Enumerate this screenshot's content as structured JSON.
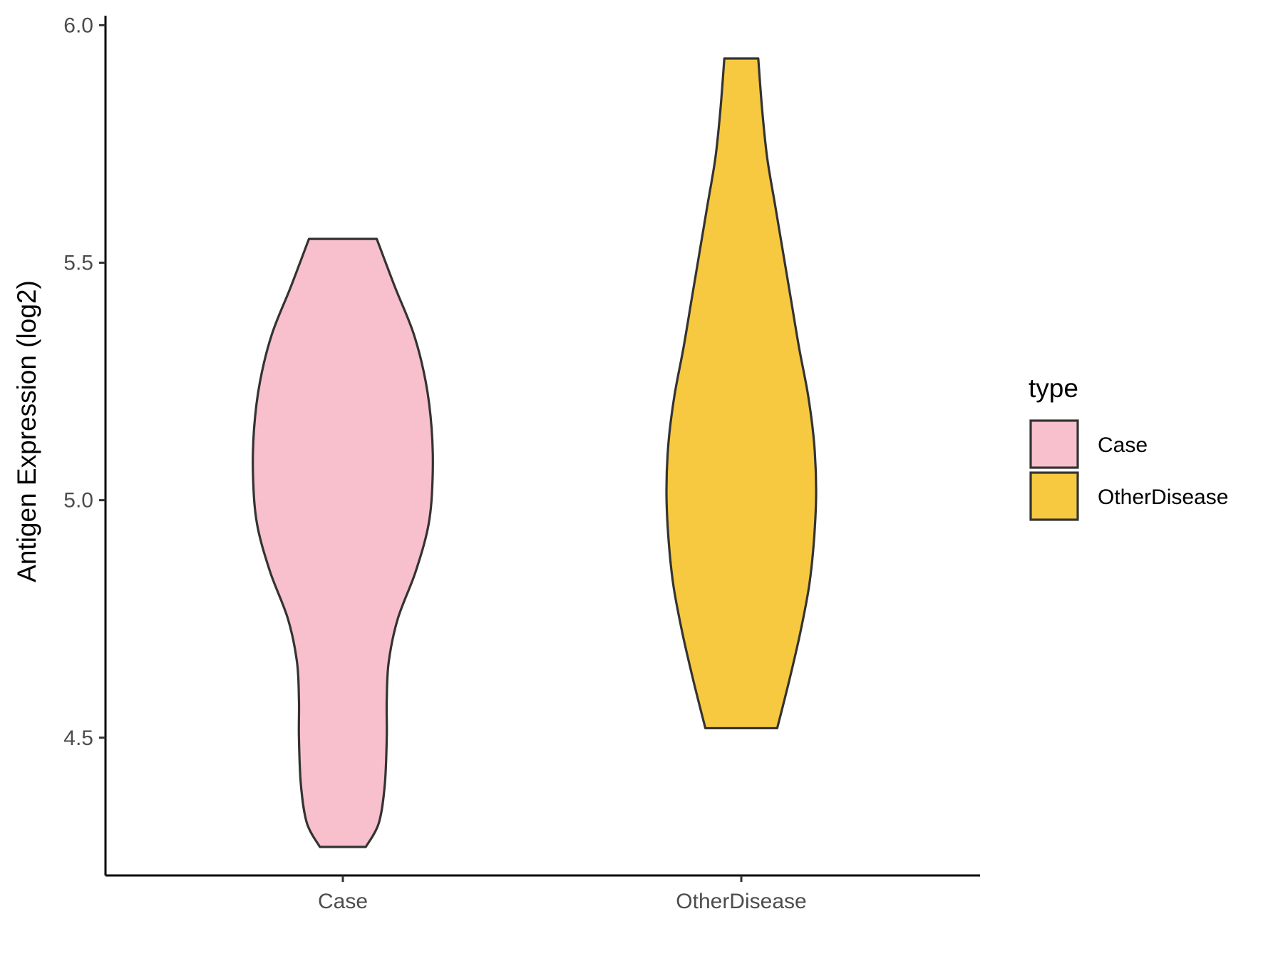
{
  "chart_data": {
    "type": "violin",
    "ylabel": "Antigen Expression (log2)",
    "xlabel": "",
    "categories": [
      "Case",
      "OtherDisease"
    ],
    "ylim": [
      4.21,
      6.02
    ],
    "yticks": [
      4.5,
      5.0,
      5.5,
      6.0
    ],
    "ytick_labels": [
      "4.5",
      "5.0",
      "5.5",
      "6.0"
    ],
    "grid": false,
    "legend": {
      "title": "type",
      "placement": "right",
      "entries": [
        {
          "label": "Case",
          "color": "#F7C0CC"
        },
        {
          "label": "OtherDisease",
          "color": "#F6C940"
        }
      ]
    },
    "series": [
      {
        "category": "Case",
        "fill": "#F7C0CC",
        "y_range": [
          4.27,
          5.55
        ],
        "profile": [
          [
            4.27,
            0.23
          ],
          [
            4.32,
            0.36
          ],
          [
            4.4,
            0.42
          ],
          [
            4.5,
            0.44
          ],
          [
            4.58,
            0.44
          ],
          [
            4.66,
            0.46
          ],
          [
            4.75,
            0.55
          ],
          [
            4.85,
            0.73
          ],
          [
            4.95,
            0.86
          ],
          [
            5.05,
            0.9
          ],
          [
            5.15,
            0.89
          ],
          [
            5.25,
            0.83
          ],
          [
            5.35,
            0.71
          ],
          [
            5.45,
            0.52
          ],
          [
            5.55,
            0.34
          ]
        ]
      },
      {
        "category": "OtherDisease",
        "fill": "#F6C940",
        "y_range": [
          4.52,
          5.93
        ],
        "profile": [
          [
            4.52,
            0.36
          ],
          [
            4.62,
            0.48
          ],
          [
            4.72,
            0.59
          ],
          [
            4.82,
            0.68
          ],
          [
            4.92,
            0.73
          ],
          [
            5.02,
            0.75
          ],
          [
            5.12,
            0.73
          ],
          [
            5.22,
            0.67
          ],
          [
            5.32,
            0.58
          ],
          [
            5.42,
            0.5
          ],
          [
            5.52,
            0.42
          ],
          [
            5.62,
            0.34
          ],
          [
            5.72,
            0.26
          ],
          [
            5.82,
            0.21
          ],
          [
            5.93,
            0.17
          ]
        ]
      }
    ]
  }
}
